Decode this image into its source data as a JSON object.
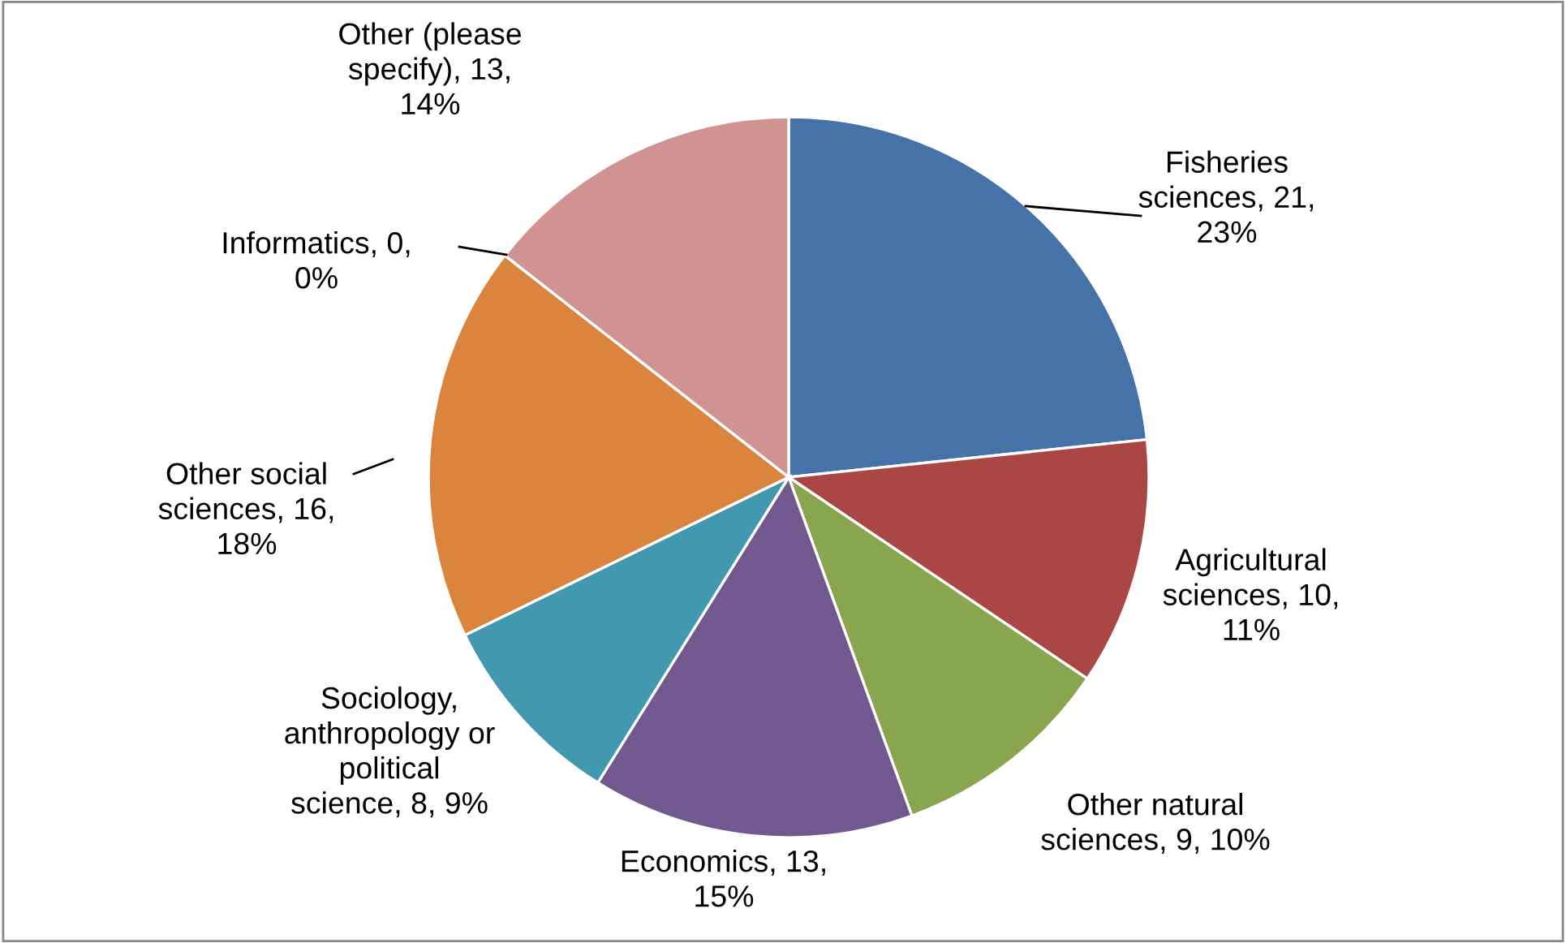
{
  "chart_data": {
    "type": "pie",
    "categories": [
      "Fisheries sciences",
      "Agricultural sciences",
      "Other natural sciences",
      "Economics",
      "Sociology, anthropology or political science",
      "Other social sciences",
      "Informatics",
      "Other (please specify)"
    ],
    "values": [
      21,
      10,
      9,
      13,
      8,
      16,
      0,
      13
    ],
    "colors": [
      "#4572a7",
      "#aa4643",
      "#89a54e",
      "#71588f",
      "#4198af",
      "#db843d",
      "#93a9cf",
      "#d19392"
    ],
    "value_labels": [
      "21, 23%",
      "10, 11%",
      "9, 10%",
      "13, 15%",
      "8, 9%",
      "16, 18%",
      "0, 0%",
      "13, 14%"
    ]
  }
}
